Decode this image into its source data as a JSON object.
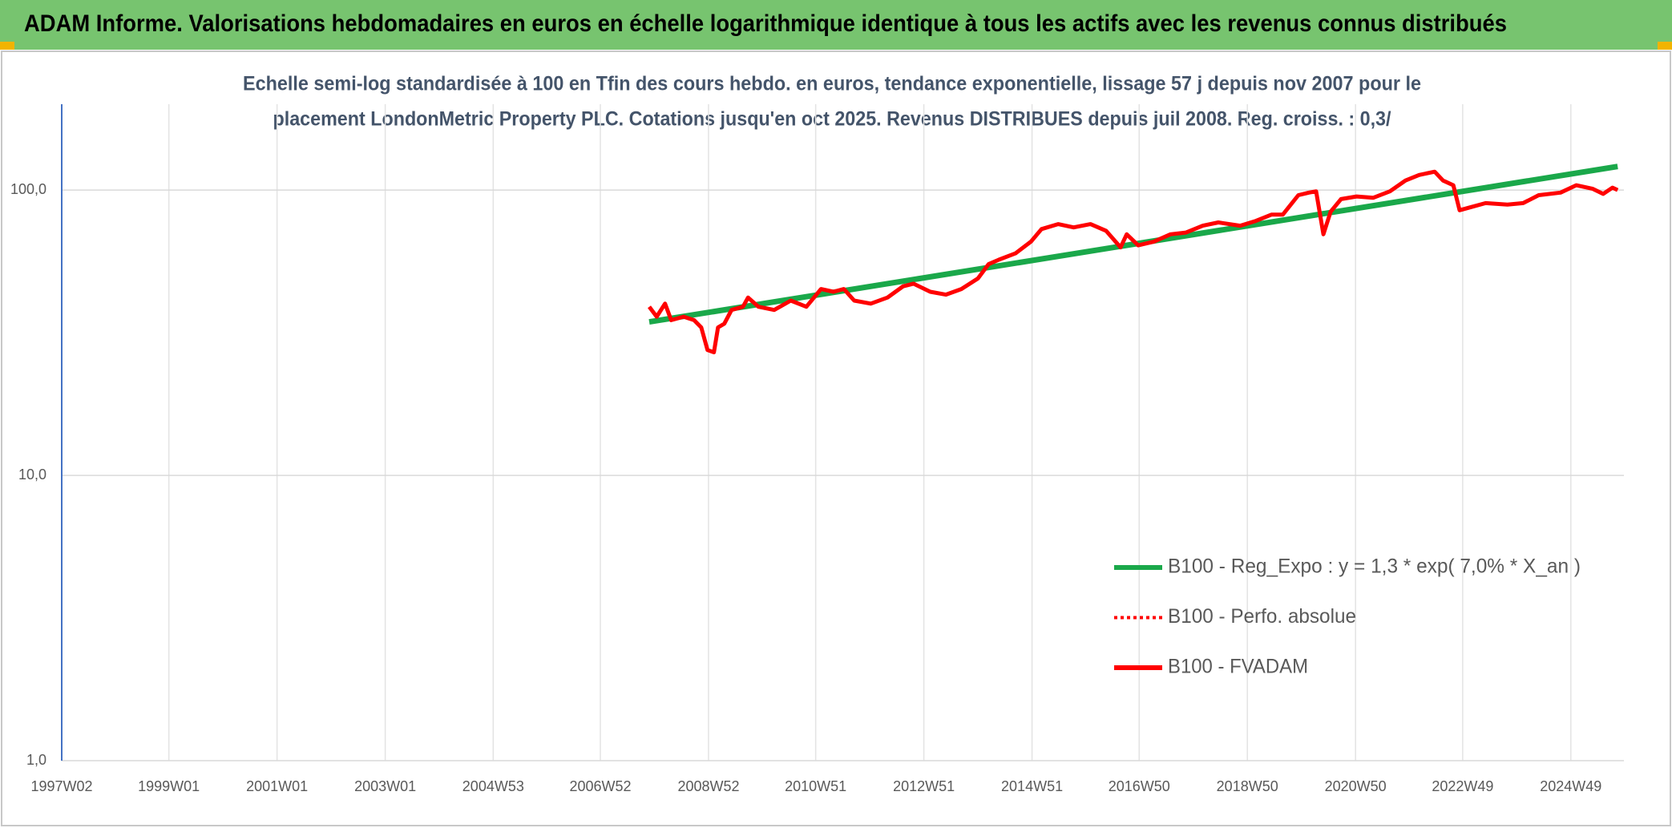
{
  "header": {
    "title": "ADAM Informe. Valorisations hebdomadaires en euros en échelle logarithmique identique à tous les actifs avec les revenus connus distribués"
  },
  "chart_data": {
    "type": "line",
    "subtitle": [
      "Echelle semi-log standardisée à 100 en Tfin des cours hebdo. en euros, tendance exponentielle, lissage 57 j depuis nov 2007 pour le",
      "placement LondonMetric Property PLC. Cotations jusqu'en oct 2025. Revenus DISTRIBUES depuis juil 2008. Reg. croiss. : 0,3/"
    ],
    "log_y": true,
    "grid": true,
    "ylim": [
      1,
      200
    ],
    "yticks": [
      {
        "value": 1,
        "label": "1,0"
      },
      {
        "value": 10,
        "label": "10,0"
      },
      {
        "value": 100,
        "label": "100,0"
      }
    ],
    "xlim": [
      "1997W02",
      "2025W48"
    ],
    "xticks": [
      "1997W02",
      "1999W01",
      "2001W01",
      "2003W01",
      "2004W53",
      "2006W52",
      "2008W52",
      "2010W51",
      "2012W51",
      "2014W51",
      "2016W50",
      "2018W50",
      "2020W50",
      "2022W49",
      "2024W49"
    ],
    "series": [
      {
        "name": "B100 - Reg_Expo : y = 1,3 * exp( 7,0% *  X_an )",
        "color": "#1aa84a",
        "style": "solid",
        "x": [
          "2007W47",
          "2025W42"
        ],
        "values": [
          34.5,
          121
        ]
      },
      {
        "name": "B100 - Perfo. absolue",
        "color": "#ff0000",
        "style": "dotted",
        "x": [],
        "values": []
      },
      {
        "name": "B100 - FVADAM",
        "color": "#ff0000",
        "style": "solid",
        "x": [
          "2007W47",
          "2008W02",
          "2008W10",
          "2008W16",
          "2008W28",
          "2008W38",
          "2008W45",
          "2008W51",
          "2009W05",
          "2009W09",
          "2009W15",
          "2009W22",
          "2009W33",
          "2009W38",
          "2009W48",
          "2010W11",
          "2010W27",
          "2010W42",
          "2011W04",
          "2011W16",
          "2011W26",
          "2011W36",
          "2011W52",
          "2012W16",
          "2012W31",
          "2012W41",
          "2013W05",
          "2013W20",
          "2013W35",
          "2013W51",
          "2014W09",
          "2014W19",
          "2014W35",
          "2014W50",
          "2015W08",
          "2015W24",
          "2015W39",
          "2016W03",
          "2016W18",
          "2016W32",
          "2016W38",
          "2016W49",
          "2017W12",
          "2017W28",
          "2017W43",
          "2018W07",
          "2018W22",
          "2018W43",
          "2019W06",
          "2019W21",
          "2019W32",
          "2019W47",
          "2020W05",
          "2020W12",
          "2020W19",
          "2020W26",
          "2020W36",
          "2020W51",
          "2021W15",
          "2021W31",
          "2021W46",
          "2022W07",
          "2022W22",
          "2022W30",
          "2022W40",
          "2022W46",
          "2023W04",
          "2023W19",
          "2023W40",
          "2024W03",
          "2024W18",
          "2024W39",
          "2025W02",
          "2025W18",
          "2025W28",
          "2025W37",
          "2025W42"
        ],
        "values": [
          39,
          36,
          40,
          35,
          36,
          35,
          33,
          27.5,
          27,
          33,
          34,
          38,
          39,
          42,
          39,
          38,
          41,
          39,
          45,
          44,
          45,
          41,
          40,
          42,
          46,
          47,
          44,
          43,
          45,
          49,
          55,
          57,
          60,
          66,
          73,
          76,
          74,
          76,
          72,
          63,
          70,
          64,
          66,
          70,
          71,
          75,
          77,
          75,
          78,
          82,
          82,
          96,
          98,
          99,
          70,
          84,
          93,
          95,
          94,
          99,
          108,
          113,
          116,
          108,
          104,
          85,
          87,
          90,
          89,
          90,
          96,
          98,
          104,
          101,
          97,
          102,
          100
        ]
      }
    ]
  }
}
